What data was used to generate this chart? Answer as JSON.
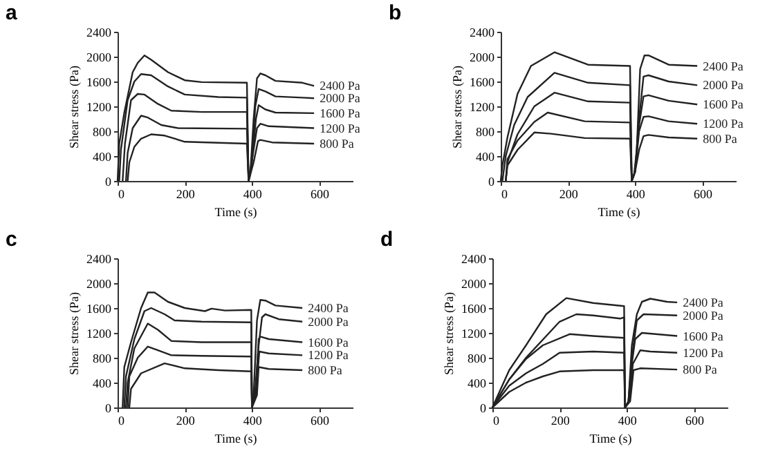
{
  "chart_data": [
    {
      "type": "line",
      "title": "a",
      "xlabel": "Time (s)",
      "ylabel": "Shear stress (Pa)",
      "xlim": [
        0,
        700
      ],
      "xticks": [
        0,
        200,
        400,
        600
      ],
      "ylim": [
        0,
        2400
      ],
      "yticks": [
        0,
        400,
        800,
        1200,
        1600,
        2000,
        2400
      ],
      "grid": false,
      "series": [
        {
          "name": "2400 Pa",
          "color": "#222222",
          "x": [
            0,
            5,
            20,
            45,
            60,
            80,
            100,
            150,
            200,
            250,
            385,
            390,
            395,
            405,
            415,
            425,
            440,
            470,
            550,
            585
          ],
          "values": [
            0,
            600,
            1100,
            1750,
            1900,
            2020,
            1950,
            1750,
            1620,
            1590,
            1580,
            0,
            100,
            1000,
            1650,
            1730,
            1700,
            1610,
            1580,
            1530
          ]
        },
        {
          "name": "2000 Pa",
          "color": "#222222",
          "x": [
            5,
            10,
            30,
            50,
            70,
            100,
            150,
            200,
            300,
            385,
            390,
            398,
            410,
            420,
            440,
            470,
            550,
            585
          ],
          "values": [
            0,
            500,
            1300,
            1600,
            1720,
            1700,
            1520,
            1390,
            1350,
            1340,
            0,
            200,
            1200,
            1480,
            1440,
            1360,
            1340,
            1330
          ]
        },
        {
          "name": "1600 Pa",
          "color": "#222222",
          "x": [
            15,
            22,
            40,
            60,
            80,
            120,
            160,
            250,
            385,
            390,
            400,
            412,
            420,
            440,
            470,
            585
          ],
          "values": [
            0,
            600,
            1300,
            1400,
            1390,
            1240,
            1130,
            1110,
            1110,
            0,
            300,
            1000,
            1220,
            1150,
            1100,
            1090
          ]
        },
        {
          "name": "1200 Pa",
          "color": "#222222",
          "x": [
            25,
            30,
            45,
            70,
            90,
            130,
            180,
            385,
            390,
            402,
            415,
            425,
            450,
            585
          ],
          "values": [
            0,
            450,
            850,
            1050,
            1020,
            900,
            850,
            840,
            0,
            400,
            850,
            920,
            880,
            850
          ]
        },
        {
          "name": "800 Pa",
          "color": "#222222",
          "x": [
            30,
            35,
            50,
            70,
            100,
            140,
            200,
            385,
            390,
            405,
            418,
            425,
            460,
            585
          ],
          "values": [
            0,
            300,
            550,
            680,
            750,
            730,
            630,
            600,
            0,
            300,
            640,
            660,
            620,
            600
          ]
        }
      ]
    },
    {
      "type": "line",
      "title": "b",
      "xlabel": "Time (s)",
      "ylabel": "Shear stress (Pa)",
      "xlim": [
        0,
        700
      ],
      "xticks": [
        0,
        200,
        400,
        600
      ],
      "ylim": [
        0,
        2400
      ],
      "yticks": [
        0,
        400,
        800,
        1200,
        1600,
        2000,
        2400
      ],
      "grid": false,
      "series": [
        {
          "name": "2400 Pa",
          "color": "#222222",
          "x": [
            0,
            5,
            20,
            50,
            90,
            160,
            260,
            385,
            390,
            397,
            405,
            415,
            428,
            440,
            500,
            585
          ],
          "values": [
            0,
            250,
            700,
            1400,
            1850,
            2070,
            1870,
            1850,
            0,
            100,
            500,
            1800,
            2020,
            2020,
            1870,
            1850
          ]
        },
        {
          "name": "2000 Pa",
          "color": "#222222",
          "x": [
            5,
            15,
            40,
            80,
            160,
            260,
            385,
            390,
            400,
            410,
            425,
            440,
            500,
            585
          ],
          "values": [
            0,
            400,
            900,
            1350,
            1740,
            1580,
            1540,
            0,
            150,
            900,
            1680,
            1700,
            1600,
            1540
          ]
        },
        {
          "name": "1600 Pa",
          "color": "#222222",
          "x": [
            15,
            20,
            50,
            100,
            160,
            260,
            385,
            390,
            400,
            412,
            425,
            440,
            500,
            585
          ],
          "values": [
            0,
            300,
            750,
            1200,
            1420,
            1280,
            1260,
            0,
            150,
            900,
            1360,
            1380,
            1290,
            1230
          ]
        },
        {
          "name": "1200 Pa",
          "color": "#222222",
          "x": [
            15,
            20,
            50,
            100,
            140,
            250,
            385,
            390,
            400,
            412,
            425,
            440,
            500,
            585
          ],
          "values": [
            0,
            350,
            650,
            950,
            1100,
            960,
            940,
            0,
            150,
            800,
            1030,
            1040,
            960,
            920
          ]
        },
        {
          "name": "800 Pa",
          "color": "#222222",
          "x": [
            15,
            20,
            50,
            100,
            150,
            250,
            385,
            390,
            400,
            412,
            425,
            440,
            500,
            585
          ],
          "values": [
            0,
            250,
            500,
            780,
            760,
            690,
            680,
            0,
            150,
            500,
            720,
            740,
            700,
            680
          ]
        }
      ]
    },
    {
      "type": "line",
      "title": "c",
      "xlabel": "Time (s)",
      "ylabel": "Shear stress (Pa)",
      "xlim": [
        0,
        700
      ],
      "xticks": [
        0,
        200,
        400,
        600
      ],
      "ylim": [
        0,
        2400
      ],
      "yticks": [
        0,
        400,
        800,
        1200,
        1600,
        2000,
        2400
      ],
      "grid": false,
      "series": [
        {
          "name": "2400 Pa",
          "color": "#222222",
          "x": [
            15,
            20,
            40,
            70,
            90,
            110,
            150,
            200,
            260,
            280,
            320,
            398,
            400,
            405,
            415,
            425,
            440,
            470,
            550
          ],
          "values": [
            0,
            650,
            1050,
            1600,
            1850,
            1850,
            1700,
            1600,
            1550,
            1590,
            1560,
            1570,
            0,
            200,
            1400,
            1730,
            1720,
            1640,
            1600
          ]
        },
        {
          "name": "2000 Pa",
          "color": "#222222",
          "x": [
            20,
            25,
            50,
            80,
            100,
            140,
            170,
            250,
            398,
            400,
            410,
            420,
            430,
            440,
            480,
            550
          ],
          "values": [
            0,
            500,
            1100,
            1550,
            1600,
            1500,
            1400,
            1380,
            1370,
            0,
            300,
            1000,
            1450,
            1500,
            1420,
            1380
          ]
        },
        {
          "name": "1600 Pa",
          "color": "#222222",
          "x": [
            25,
            30,
            50,
            90,
            120,
            160,
            250,
            398,
            400,
            412,
            420,
            425,
            450,
            550
          ],
          "values": [
            0,
            400,
            950,
            1350,
            1250,
            1070,
            1050,
            1050,
            0,
            300,
            1100,
            1140,
            1100,
            1050
          ]
        },
        {
          "name": "1200 Pa",
          "color": "#222222",
          "x": [
            30,
            35,
            60,
            90,
            120,
            160,
            250,
            398,
            400,
            412,
            422,
            450,
            550
          ],
          "values": [
            0,
            500,
            800,
            980,
            920,
            840,
            830,
            820,
            0,
            200,
            900,
            870,
            840
          ]
        },
        {
          "name": "800 Pa",
          "color": "#222222",
          "x": [
            35,
            40,
            70,
            140,
            200,
            300,
            398,
            400,
            415,
            420,
            450,
            550
          ],
          "values": [
            0,
            300,
            550,
            710,
            630,
            600,
            580,
            0,
            200,
            650,
            620,
            600
          ]
        }
      ]
    },
    {
      "type": "line",
      "title": "d",
      "xlabel": "Time (s)",
      "ylabel": "Shear stress (Pa)",
      "xlim": [
        0,
        700
      ],
      "xticks": [
        0,
        200,
        400,
        600
      ],
      "ylim": [
        0,
        2400
      ],
      "yticks": [
        0,
        400,
        800,
        1200,
        1600,
        2000,
        2400
      ],
      "grid": false,
      "series": [
        {
          "name": "2400 Pa",
          "color": "#222222",
          "x": [
            0,
            50,
            100,
            160,
            220,
            300,
            392,
            395,
            405,
            415,
            430,
            445,
            470,
            520,
            550
          ],
          "values": [
            0,
            600,
            1000,
            1500,
            1760,
            1680,
            1630,
            0,
            100,
            1000,
            1500,
            1700,
            1750,
            1700,
            1690
          ]
        },
        {
          "name": "2000 Pa",
          "color": "#222222",
          "x": [
            0,
            50,
            100,
            200,
            250,
            300,
            380,
            392,
            395,
            405,
            415,
            430,
            450,
            550
          ],
          "values": [
            0,
            450,
            800,
            1380,
            1500,
            1480,
            1430,
            1450,
            0,
            100,
            800,
            1400,
            1500,
            1480
          ]
        },
        {
          "name": "1600 Pa",
          "color": "#222222",
          "x": [
            0,
            50,
            100,
            150,
            230,
            300,
            392,
            395,
            405,
            415,
            425,
            445,
            550
          ],
          "values": [
            0,
            450,
            780,
            1000,
            1180,
            1150,
            1120,
            0,
            100,
            700,
            1100,
            1200,
            1150
          ]
        },
        {
          "name": "1200 Pa",
          "color": "#222222",
          "x": [
            0,
            50,
            100,
            150,
            200,
            300,
            392,
            395,
            408,
            418,
            440,
            470,
            550
          ],
          "values": [
            0,
            350,
            550,
            700,
            880,
            900,
            880,
            0,
            100,
            700,
            920,
            900,
            880
          ]
        },
        {
          "name": "800 Pa",
          "color": "#222222",
          "x": [
            0,
            50,
            100,
            150,
            200,
            300,
            392,
            395,
            410,
            420,
            440,
            550
          ],
          "values": [
            0,
            250,
            400,
            500,
            580,
            600,
            600,
            0,
            100,
            600,
            630,
            610
          ]
        }
      ]
    }
  ]
}
